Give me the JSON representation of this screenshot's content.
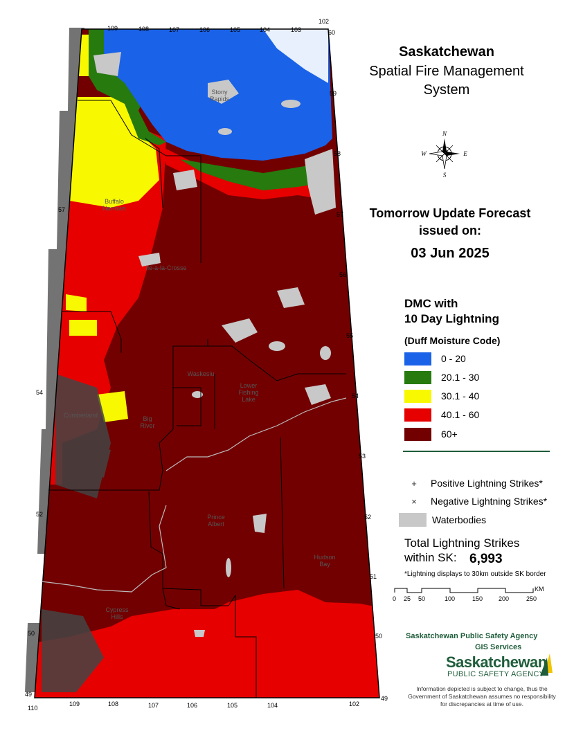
{
  "title": {
    "region": "Saskatchewan",
    "system_line1": "Spatial Fire Management",
    "system_line2": "System"
  },
  "forecast": {
    "line1": "Tomorrow Update Forecast",
    "line2": "issued on:",
    "date": "03 Jun 2025"
  },
  "legend": {
    "title_line1": "DMC with",
    "title_line2": "10 Day Lightning",
    "subtitle": "(Duff Moisture Code)",
    "classes": [
      {
        "label": "0 - 20",
        "color": "#1a62e8"
      },
      {
        "label": "20.1 - 30",
        "color": "#267a0e"
      },
      {
        "label": "30.1 - 40",
        "color": "#f8f800"
      },
      {
        "label": "40.1 - 60",
        "color": "#e60000"
      },
      {
        "label": "60+",
        "color": "#730000"
      }
    ],
    "symbols": {
      "positive_icon": "+",
      "positive": "Positive Lightning Strikes*",
      "negative_icon": "×",
      "negative": "Negative Lightning Strikes*",
      "water": "Waterbodies",
      "water_color": "#c8c8c8"
    }
  },
  "totals": {
    "label_line1": "Total Lightning Strikes",
    "label_line2": "within SK:",
    "count": "6,993",
    "note": "*Lightning displays to 30km outside SK border"
  },
  "scale": {
    "ticks": [
      "0",
      "25",
      "50",
      "100",
      "150",
      "200",
      "250"
    ],
    "unit": "KM"
  },
  "compass": {
    "n": "N",
    "e": "E",
    "s": "S",
    "w": "W"
  },
  "agency": {
    "name": "Saskatchewan Public Safety Agency",
    "unit": "GIS  Services",
    "logo_line1": "Saskatchewan",
    "logo_line2": "PUBLIC SAFETY AGENCY",
    "disclaimer": "Information depicted is subject to change, thus the Government of Saskatchewan assumes no responsibility for discrepancies at time of use."
  },
  "map_labels": {
    "stony_rapids": "Stony Rapids",
    "buffalo_narrows": "Buffalo Narrows",
    "ile_a_la_crosse": "Ile-a-la-Crosse",
    "waskesiu": "Waskesiu",
    "lower_fishing_lake": "Lower Fishing Lake",
    "cumberland": "Cumberland",
    "big_river": "Big River",
    "prince_albert": "Prince Albert",
    "hudson_bay": "Hudson Bay",
    "cypress_hills": "Cypress Hills"
  },
  "grid_labels": {
    "top": [
      "109",
      "108",
      "107",
      "106",
      "105",
      "104",
      "103",
      "102"
    ],
    "right": [
      "60",
      "59",
      "58",
      "57",
      "56",
      "55",
      "54",
      "53",
      "52",
      "51",
      "50",
      "49"
    ],
    "left": [
      "57",
      "54",
      "52",
      "50",
      "49"
    ],
    "bottom": [
      "110",
      "109",
      "108",
      "107",
      "106",
      "105",
      "104",
      "102"
    ]
  }
}
